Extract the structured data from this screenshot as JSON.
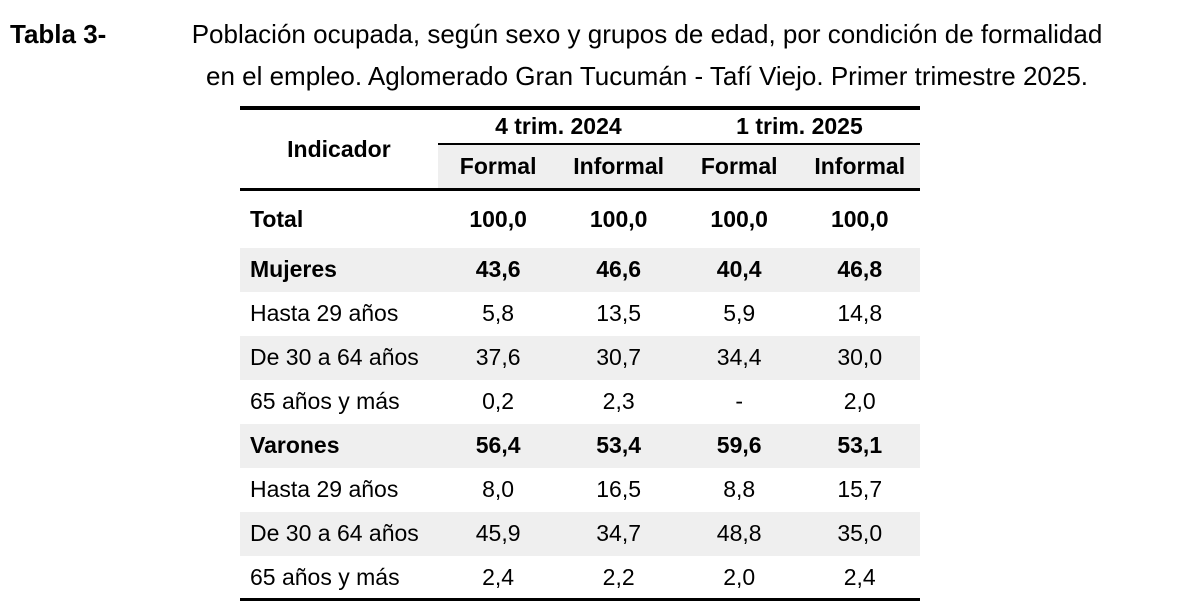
{
  "title": {
    "label": "Tabla 3-",
    "line1": "Población ocupada, según sexo y grupos de edad, por condición de formalidad",
    "line2": "en el empleo. Aglomerado Gran Tucumán - Tafí Viejo. Primer trimestre 2025."
  },
  "table": {
    "indicator_header": "Indicador",
    "period_headers": [
      "4 trim. 2024",
      "1 trim. 2025"
    ],
    "sub_headers": [
      "Formal",
      "Informal",
      "Formal",
      "Informal"
    ],
    "rows": [
      {
        "label": "Total",
        "values": [
          "100,0",
          "100,0",
          "100,0",
          "100,0"
        ],
        "bold": true,
        "shaded": false
      },
      {
        "label": "Mujeres",
        "values": [
          "43,6",
          "46,6",
          "40,4",
          "46,8"
        ],
        "bold": true,
        "shaded": true
      },
      {
        "label": "Hasta 29 años",
        "values": [
          "5,8",
          "13,5",
          "5,9",
          "14,8"
        ],
        "bold": false,
        "shaded": false
      },
      {
        "label": "De 30 a 64 años",
        "values": [
          "37,6",
          "30,7",
          "34,4",
          "30,0"
        ],
        "bold": false,
        "shaded": true
      },
      {
        "label": "65 años y más",
        "values": [
          "0,2",
          "2,3",
          "-",
          "2,0"
        ],
        "bold": false,
        "shaded": false
      },
      {
        "label": "Varones",
        "values": [
          "56,4",
          "53,4",
          "59,6",
          "53,1"
        ],
        "bold": true,
        "shaded": true
      },
      {
        "label": "Hasta 29 años",
        "values": [
          "8,0",
          "16,5",
          "8,8",
          "15,7"
        ],
        "bold": false,
        "shaded": false
      },
      {
        "label": "De 30 a 64 años",
        "values": [
          "45,9",
          "34,7",
          "48,8",
          "35,0"
        ],
        "bold": false,
        "shaded": true
      },
      {
        "label": "65 años y más",
        "values": [
          "2,4",
          "2,2",
          "2,0",
          "2,4"
        ],
        "bold": false,
        "shaded": false
      }
    ],
    "colors": {
      "shaded_row": "#efefef",
      "border": "#000000",
      "text": "#000000"
    }
  }
}
